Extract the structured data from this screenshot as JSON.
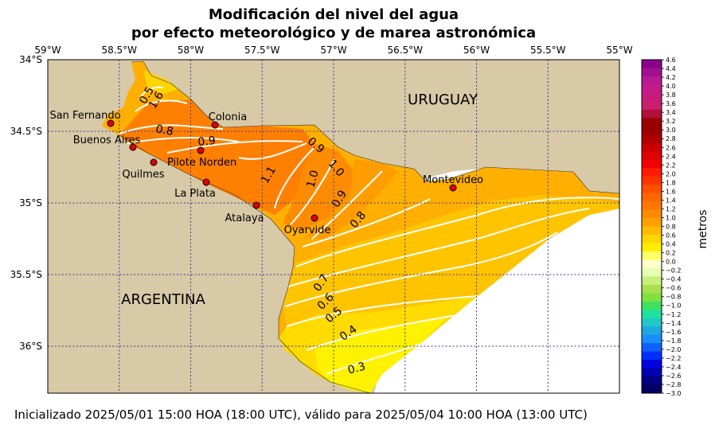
{
  "title": {
    "line1": "Modificación del nivel del agua",
    "line2": "por efecto meteorológico y de marea astronómica"
  },
  "footer": "Inicializado 2025/05/01 15:00 HOA (18:00 UTC), válido para 2025/05/04 10:00 HOA (13:00 UTC)",
  "axes": {
    "lon_ticks": [
      "59°W",
      "58.5°W",
      "58°W",
      "57.5°W",
      "57°W",
      "56.5°W",
      "56°W",
      "55.5°W",
      "55°W"
    ],
    "lat_ticks": [
      "34°S",
      "34.5°S",
      "35°S",
      "35.5°S",
      "36°S"
    ]
  },
  "regions": {
    "north": "URUGUAY",
    "south": "ARGENTINA"
  },
  "places": [
    {
      "name": "San Fernando"
    },
    {
      "name": "Buenos Aires"
    },
    {
      "name": "Quilmes"
    },
    {
      "name": "Pilote Norden"
    },
    {
      "name": "La Plata"
    },
    {
      "name": "Atalaya"
    },
    {
      "name": "Colonia"
    },
    {
      "name": "Oyarvide"
    },
    {
      "name": "Montevideo"
    }
  ],
  "contour_labels": [
    "0.5",
    "1.6",
    "0.8",
    "0.9",
    "0.9",
    "1.1",
    "1.0",
    "1.0",
    "0.9",
    "0.8",
    "0.7",
    "0.6",
    "0.5",
    "0.4",
    "0.3"
  ],
  "colorbar": {
    "label": "metros",
    "ticks": [
      "4.6",
      "4.4",
      "4.2",
      "4.0",
      "3.8",
      "3.6",
      "3.4",
      "3.2",
      "3.0",
      "2.8",
      "2.6",
      "2.4",
      "2.2",
      "2.0",
      "1.8",
      "1.6",
      "1.4",
      "1.2",
      "1.0",
      "0.8",
      "0.6",
      "0.4",
      "0.2",
      "0.0",
      "−0.2",
      "−0.4",
      "−0.6",
      "−0.8",
      "−1.0",
      "−1.2",
      "−1.4",
      "−1.6",
      "−1.8",
      "−2.0",
      "−2.2",
      "−2.4",
      "−2.6",
      "−2.8",
      "−3.0"
    ],
    "colors": [
      "#8b008b",
      "#a0108f",
      "#b81893",
      "#c51a8a",
      "#c81c7a",
      "#cc1e6e",
      "#b0103a",
      "#990000",
      "#990000",
      "#b00000",
      "#c80000",
      "#e00000",
      "#f00000",
      "#ff1a00",
      "#ff3300",
      "#ff5000",
      "#ff6600",
      "#ff7700",
      "#ff8a00",
      "#ffa000",
      "#ffbb00",
      "#ffd500",
      "#ffee00",
      "#ffff66",
      "#ffffcc",
      "#e6ffb3",
      "#c8f07a",
      "#a8e050",
      "#80e040",
      "#40e060",
      "#20e0a0",
      "#20c8c8",
      "#20a8e0",
      "#1890ff",
      "#1060ff",
      "#0030ff",
      "#0000e0",
      "#0000b0",
      "#000080",
      "#000060"
    ]
  },
  "water_colors": {
    "land": "#d8c9a7",
    "v11": "#ff7f00",
    "v10": "#ff8c00",
    "v09": "#ff9d00",
    "v08": "#ffaf00",
    "v07": "#ffbf00",
    "v06": "#ffcc00",
    "v05": "#ffdb00",
    "v04": "#ffe800",
    "v03": "#fff200"
  }
}
